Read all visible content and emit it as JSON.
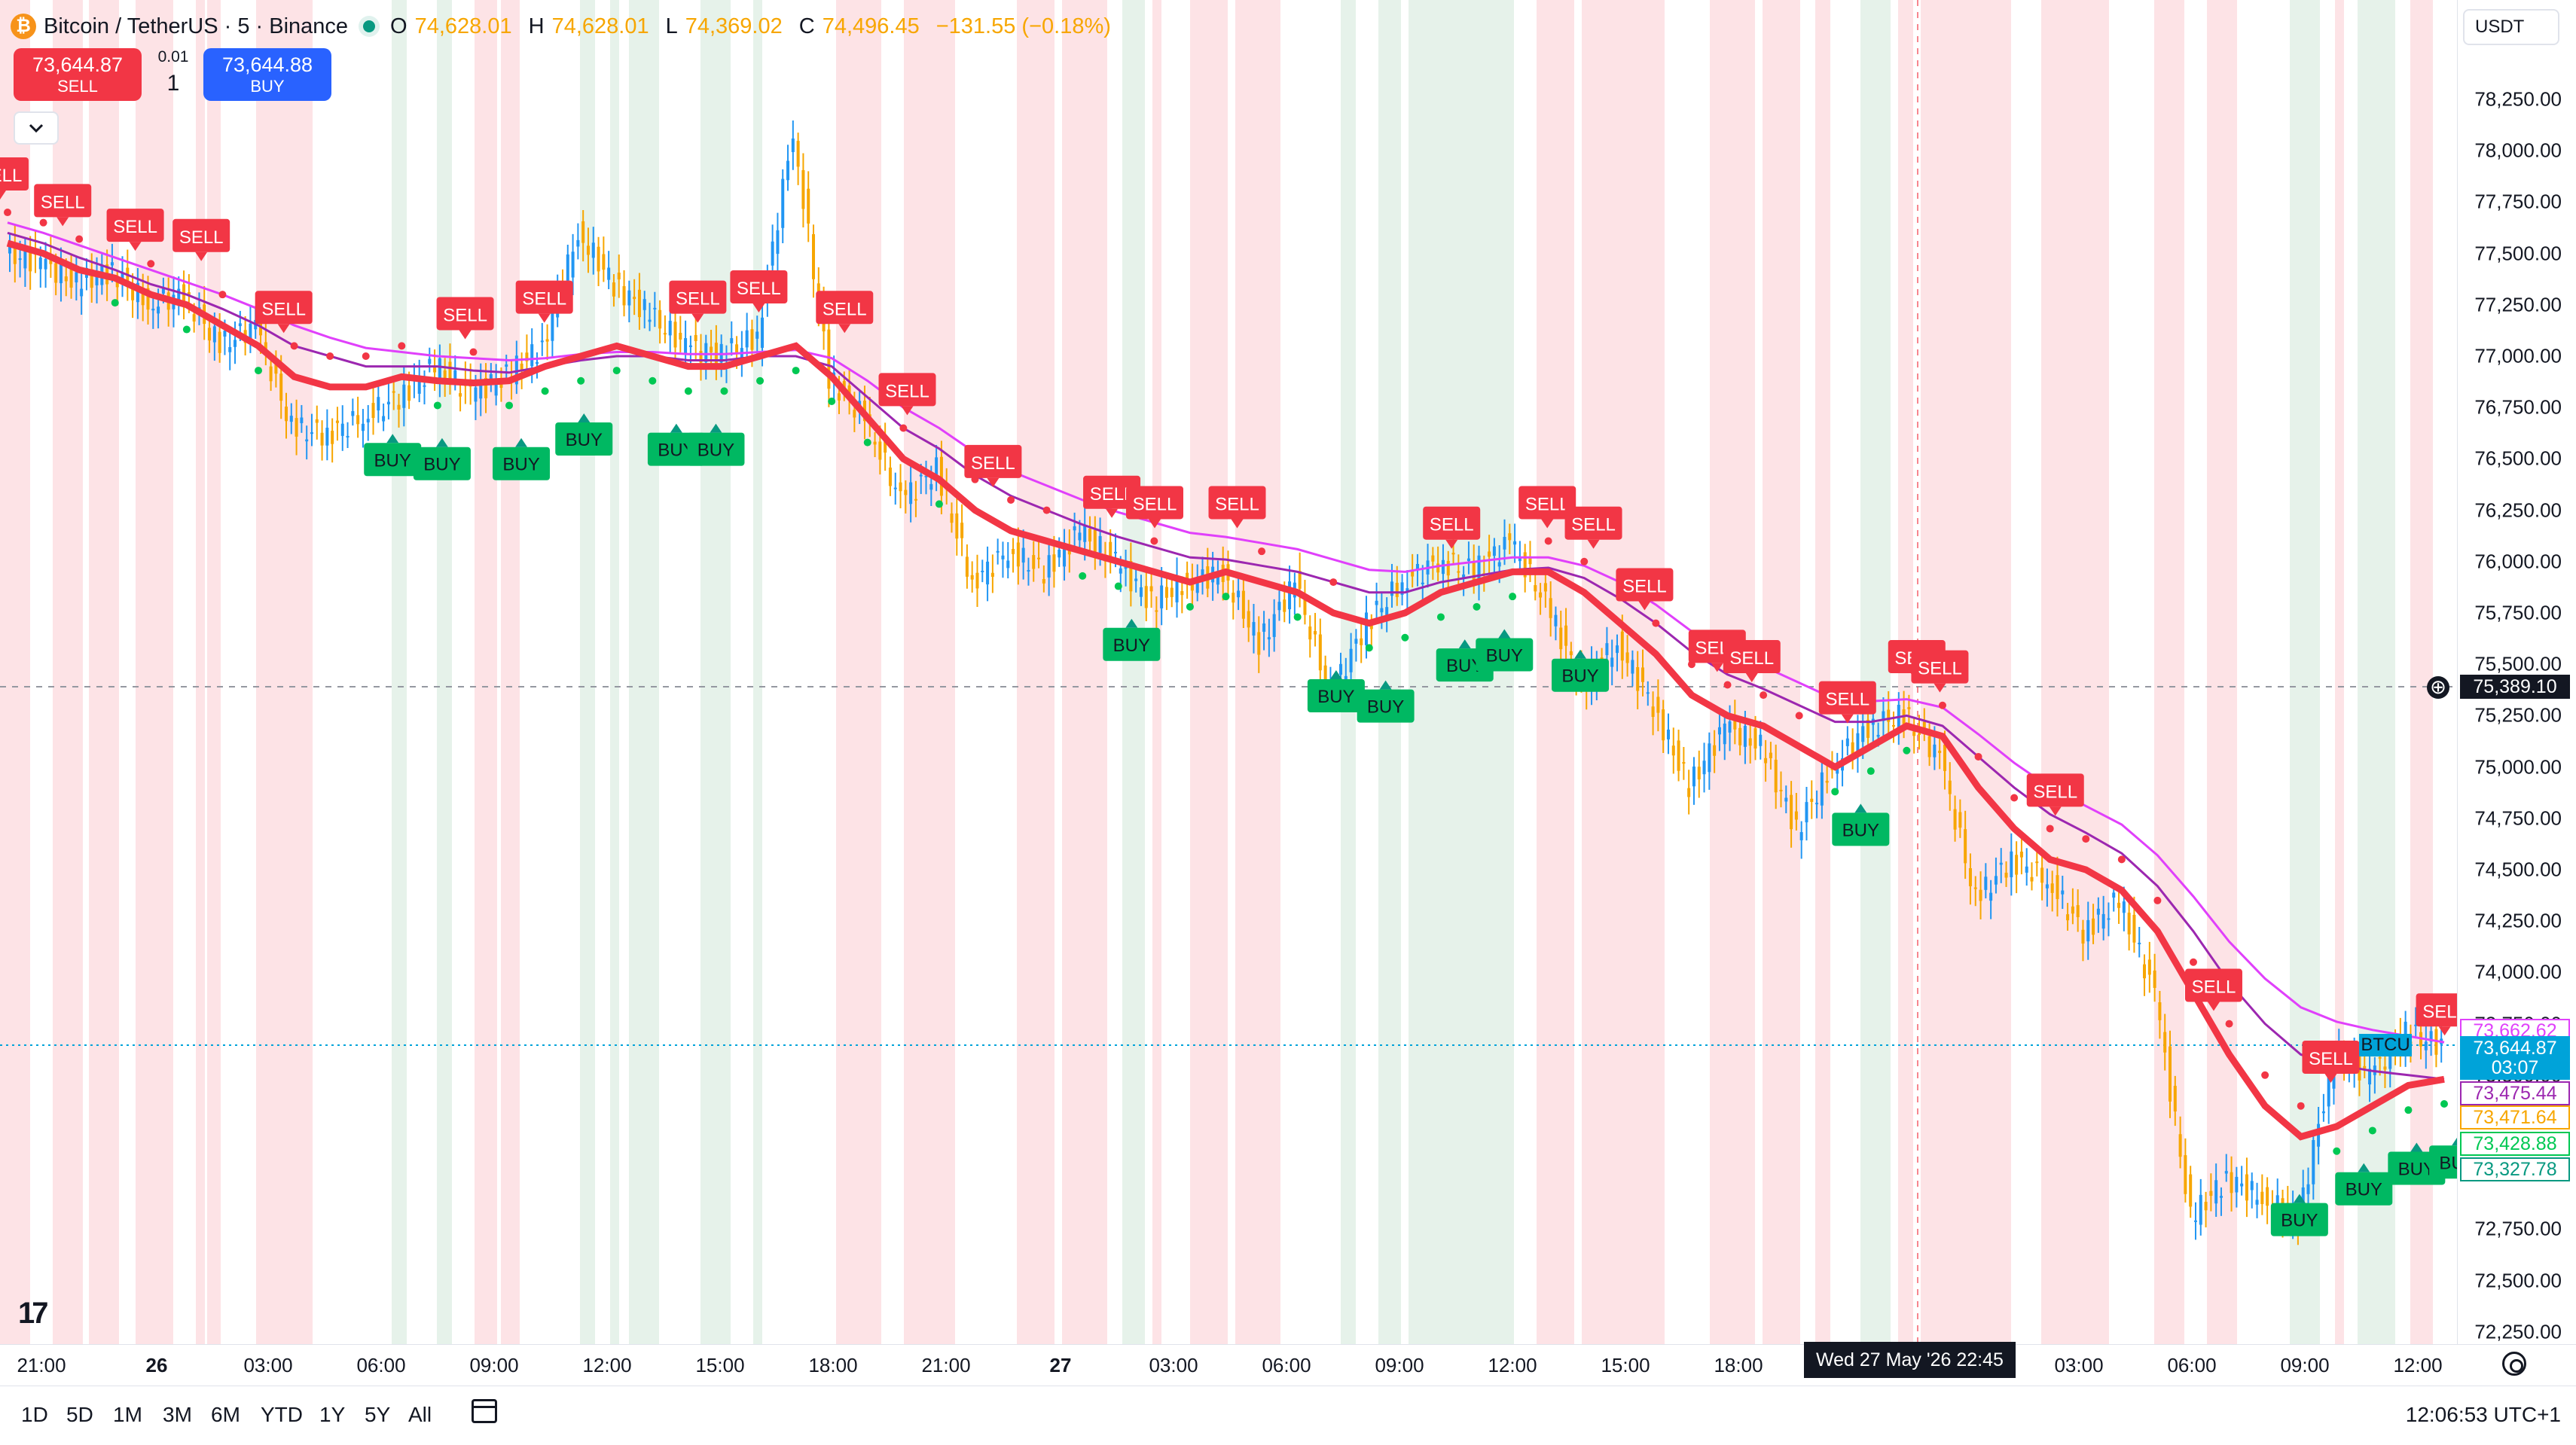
{
  "header": {
    "symbol_title": "Bitcoin / TetherUS · 5 · Binance",
    "coin_glyph": "₿",
    "ohlc": [
      {
        "k": "O",
        "v": "74,628.01"
      },
      {
        "k": "H",
        "v": "74,628.01"
      },
      {
        "k": "L",
        "v": "74,369.02"
      },
      {
        "k": "C",
        "v": "74,496.45"
      }
    ],
    "change": "−131.55 (−0.18%)"
  },
  "trade": {
    "sell_price": "73,644.87",
    "sell_label": "SELL",
    "buy_price": "73,644.88",
    "buy_label": "BUY",
    "qty_step": "0.01",
    "qty_value": "1"
  },
  "currency_button": "USDT",
  "price_axis": {
    "ticks": [
      "78,250.00",
      "78,000.00",
      "77,750.00",
      "77,500.00",
      "77,250.00",
      "77,000.00",
      "76,750.00",
      "76,500.00",
      "76,250.00",
      "76,000.00",
      "75,750.00",
      "75,500.00",
      "75,250.00",
      "75,000.00",
      "74,750.00",
      "74,500.00",
      "74,250.00",
      "74,000.00",
      "73,750.00",
      "73,500.00",
      "72,750.00",
      "72,500.00",
      "72,250.00"
    ],
    "labels": [
      {
        "text": "73,662.62",
        "color": "#e040fb",
        "bg": "#ffffff"
      },
      {
        "text": "73,644.87",
        "color": "#ffffff",
        "bg": "#00a3d9"
      },
      {
        "text": "03:07",
        "color": "#ffffff",
        "bg": "#00a3d9"
      },
      {
        "text": "73,475.44",
        "color": "#9c27b0",
        "bg": "#ffffff"
      },
      {
        "text": "73,471.64",
        "color": "#f7a600",
        "bg": "#ffffff"
      },
      {
        "text": "73,428.88",
        "color": "#00c853",
        "bg": "#ffffff"
      },
      {
        "text": "73,327.78",
        "color": "#089981",
        "bg": "#ffffff"
      }
    ],
    "crosshair_price": "75,389.10"
  },
  "time_axis": {
    "ticks": [
      "21:00",
      "26",
      "03:00",
      "06:00",
      "09:00",
      "12:00",
      "15:00",
      "18:00",
      "21:00",
      "27",
      "03:00",
      "06:00",
      "09:00",
      "12:00",
      "15:00",
      "18:00",
      "03:00",
      "06:00",
      "09:00",
      "12:00"
    ],
    "crosshair_time": "Wed 27 May '26   22:45"
  },
  "bottom_bar": {
    "timeframes": [
      "1D",
      "5D",
      "1M",
      "3M",
      "6M",
      "YTD",
      "1Y",
      "5Y",
      "All"
    ],
    "clock": "12:06:53 UTC+1"
  },
  "chart_overlay": {
    "tv_logo": "17",
    "btc_tag": "BTCU"
  },
  "signals": {
    "sell_label": "SELL",
    "buy_label": "BUY"
  },
  "chart_data": {
    "type": "line",
    "ylim": [
      72200,
      78350
    ],
    "series_colors": {
      "ema_fast": "#f23645",
      "ema_slow": "#9c27b0",
      "ema_slow2": "#e040fb",
      "trail": "#00c853",
      "sell_zone": "#fde3e6",
      "buy_zone": "#e6f2ea",
      "candle_up": "#2196f3",
      "candle_down": "#f7a600"
    },
    "price_path": [
      77500,
      77460,
      77350,
      77420,
      77250,
      77300,
      77050,
      77150,
      76650,
      76620,
      76700,
      76800,
      76950,
      76820,
      76900,
      77050,
      77600,
      77350,
      77200,
      77050,
      77000,
      77100,
      78100,
      76900,
      76700,
      76300,
      76450,
      75900,
      76050,
      75950,
      76150,
      76000,
      75800,
      75900,
      75950,
      75600,
      75900,
      75350,
      75700,
      75900,
      76000,
      75950,
      76100,
      75800,
      75400,
      75600,
      75300,
      74900,
      75200,
      75100,
      74700,
      75000,
      75200,
      75250,
      75050,
      74350,
      74550,
      74450,
      74200,
      74350,
      73900,
      72800,
      73000,
      72900,
      72800,
      73600,
      73500,
      73700,
      73650
    ],
    "ema_fast": [
      77550,
      77500,
      77420,
      77380,
      77300,
      77250,
      77150,
      77050,
      76900,
      76850,
      76850,
      76900,
      76880,
      76870,
      76880,
      76950,
      77000,
      77050,
      77000,
      76950,
      76950,
      77000,
      77050,
      76900,
      76700,
      76500,
      76400,
      76250,
      76150,
      76100,
      76050,
      76000,
      75950,
      75900,
      75950,
      75900,
      75850,
      75750,
      75700,
      75750,
      75850,
      75900,
      75950,
      75950,
      75850,
      75700,
      75550,
      75350,
      75250,
      75200,
      75100,
      75000,
      75100,
      75200,
      75150,
      74900,
      74700,
      74550,
      74500,
      74400,
      74200,
      73900,
      73600,
      73350,
      73200,
      73250,
      73350,
      73450,
      73480
    ],
    "ema_slow": [
      77600,
      77550,
      77480,
      77420,
      77350,
      77300,
      77230,
      77150,
      77050,
      77000,
      76950,
      76950,
      76950,
      76930,
      76920,
      76950,
      76980,
      77000,
      77000,
      76980,
      76980,
      77000,
      77000,
      76950,
      76800,
      76650,
      76550,
      76420,
      76320,
      76250,
      76180,
      76120,
      76070,
      76020,
      76010,
      75980,
      75950,
      75900,
      75850,
      75850,
      75900,
      75930,
      75960,
      75970,
      75920,
      75820,
      75700,
      75560,
      75450,
      75380,
      75300,
      75220,
      75220,
      75250,
      75200,
      75050,
      74900,
      74770,
      74680,
      74580,
      74420,
      74200,
      73950,
      73750,
      73600,
      73550,
      73520,
      73500,
      73480
    ],
    "ema_slow2": [
      77650,
      77600,
      77540,
      77480,
      77420,
      77360,
      77300,
      77230,
      77150,
      77090,
      77040,
      77020,
      77000,
      76990,
      76980,
      76990,
      77010,
      77020,
      77020,
      77010,
      77010,
      77020,
      77030,
      76990,
      76880,
      76750,
      76650,
      76530,
      76440,
      76370,
      76300,
      76240,
      76190,
      76140,
      76120,
      76090,
      76060,
      76010,
      75960,
      75950,
      75980,
      76000,
      76020,
      76020,
      75980,
      75900,
      75790,
      75660,
      75560,
      75490,
      75410,
      75330,
      75320,
      75330,
      75290,
      75160,
      75020,
      74900,
      74810,
      74720,
      74570,
      74370,
      74150,
      73970,
      73830,
      73760,
      73720,
      73690,
      73660
    ],
    "sell_markers_x": [
      0,
      38,
      82,
      122,
      172,
      282,
      330,
      423,
      460,
      512,
      550,
      602,
      674,
      700,
      750,
      880,
      938,
      966,
      997,
      1041,
      1062,
      1120,
      1162,
      1176,
      1246,
      1342,
      1413,
      1482
    ],
    "buy_markers_x": [
      238,
      268,
      316,
      354,
      410,
      434,
      686,
      810,
      840,
      888,
      912,
      958,
      1128,
      1394,
      1433,
      1465,
      1490
    ]
  }
}
